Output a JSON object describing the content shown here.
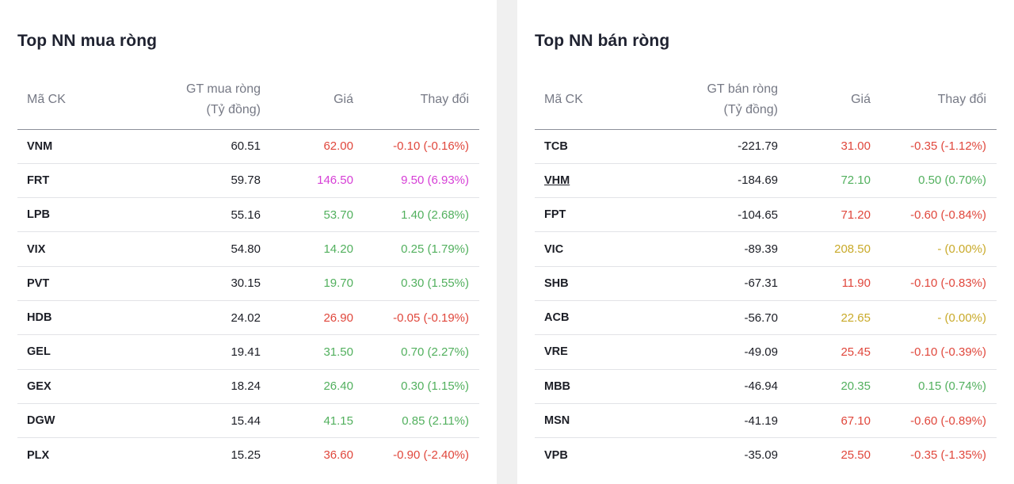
{
  "buy": {
    "title": "Top NN mua ròng",
    "headers": {
      "code": "Mã CK",
      "value_line1": "GT mua ròng",
      "value_line2": "(Tỷ đồng)",
      "price": "Giá",
      "change": "Thay đổi"
    },
    "rows": [
      {
        "code": "VNM",
        "value": "60.51",
        "price": "62.00",
        "change": "-0.10 (-0.16%)",
        "status": "down"
      },
      {
        "code": "FRT",
        "value": "59.78",
        "price": "146.50",
        "change": "9.50 (6.93%)",
        "status": "ceil"
      },
      {
        "code": "LPB",
        "value": "55.16",
        "price": "53.70",
        "change": "1.40 (2.68%)",
        "status": "up"
      },
      {
        "code": "VIX",
        "value": "54.80",
        "price": "14.20",
        "change": "0.25 (1.79%)",
        "status": "up"
      },
      {
        "code": "PVT",
        "value": "30.15",
        "price": "19.70",
        "change": "0.30 (1.55%)",
        "status": "up"
      },
      {
        "code": "HDB",
        "value": "24.02",
        "price": "26.90",
        "change": "-0.05 (-0.19%)",
        "status": "down"
      },
      {
        "code": "GEL",
        "value": "19.41",
        "price": "31.50",
        "change": "0.70 (2.27%)",
        "status": "up"
      },
      {
        "code": "GEX",
        "value": "18.24",
        "price": "26.40",
        "change": "0.30 (1.15%)",
        "status": "up"
      },
      {
        "code": "DGW",
        "value": "15.44",
        "price": "41.15",
        "change": "0.85 (2.11%)",
        "status": "up"
      },
      {
        "code": "PLX",
        "value": "15.25",
        "price": "36.60",
        "change": "-0.90 (-2.40%)",
        "status": "down"
      }
    ]
  },
  "sell": {
    "title": "Top NN bán ròng",
    "headers": {
      "code": "Mã CK",
      "value_line1": "GT bán ròng",
      "value_line2": "(Tỷ đồng)",
      "price": "Giá",
      "change": "Thay đổi"
    },
    "rows": [
      {
        "code": "TCB",
        "value": "-221.79",
        "price": "31.00",
        "change": "-0.35 (-1.12%)",
        "status": "down"
      },
      {
        "code": "VHM",
        "value": "-184.69",
        "price": "72.10",
        "change": "0.50 (0.70%)",
        "status": "up",
        "link": true
      },
      {
        "code": "FPT",
        "value": "-104.65",
        "price": "71.20",
        "change": "-0.60 (-0.84%)",
        "status": "down"
      },
      {
        "code": "VIC",
        "value": "-89.39",
        "price": "208.50",
        "change": "- (0.00%)",
        "status": "ref"
      },
      {
        "code": "SHB",
        "value": "-67.31",
        "price": "11.90",
        "change": "-0.10 (-0.83%)",
        "status": "down"
      },
      {
        "code": "ACB",
        "value": "-56.70",
        "price": "22.65",
        "change": "- (0.00%)",
        "status": "ref"
      },
      {
        "code": "VRE",
        "value": "-49.09",
        "price": "25.45",
        "change": "-0.10 (-0.39%)",
        "status": "down"
      },
      {
        "code": "MBB",
        "value": "-46.94",
        "price": "20.35",
        "change": "0.15 (0.74%)",
        "status": "up"
      },
      {
        "code": "MSN",
        "value": "-41.19",
        "price": "67.10",
        "change": "-0.60 (-0.89%)",
        "status": "down"
      },
      {
        "code": "VPB",
        "value": "-35.09",
        "price": "25.50",
        "change": "-0.35 (-1.35%)",
        "status": "down"
      }
    ]
  },
  "colors": {
    "up": "#52b05e",
    "down": "#e0473c",
    "ceil": "#d63fd6",
    "ref": "#c9aa2a"
  }
}
